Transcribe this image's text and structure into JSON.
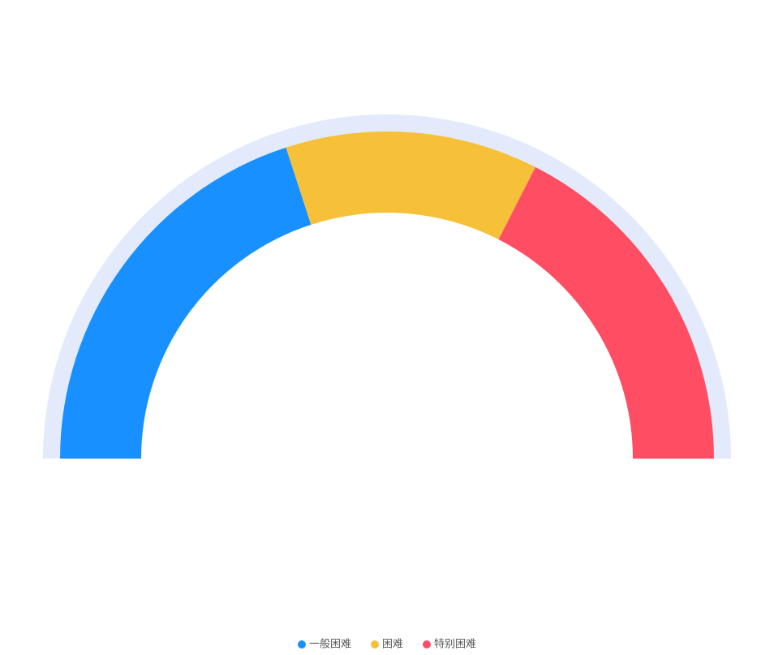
{
  "chart_data": {
    "type": "pie",
    "categories": [
      "一般困难",
      "困难",
      "特别困难"
    ],
    "values": [
      40,
      25,
      35
    ],
    "colors": [
      "#1890ff",
      "#f6c039",
      "#ff4d63"
    ],
    "track_color": "#e3eafc",
    "legend": "bottom"
  }
}
